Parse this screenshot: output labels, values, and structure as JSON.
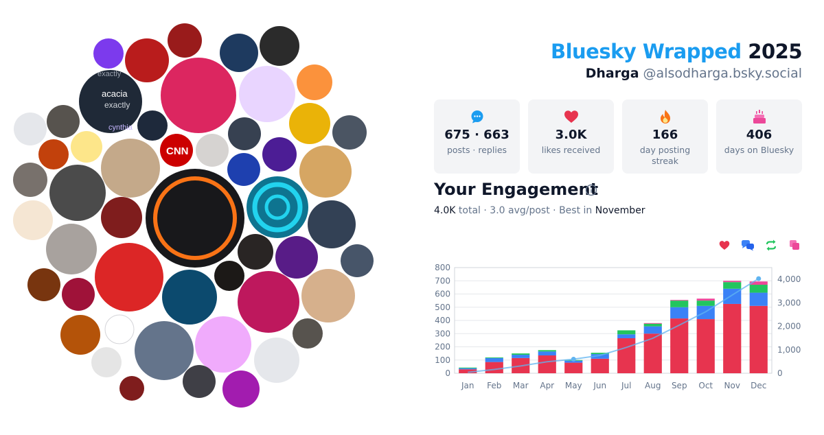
{
  "header": {
    "brand": "Bluesky Wrapped",
    "year": "2025",
    "display_name": "Dharga",
    "handle": "@alsodharga.bsky.social"
  },
  "stats": [
    {
      "icon": "speech-bubble-icon",
      "value": "675 · 663",
      "label": "posts · replies",
      "color": "#1a9cf0"
    },
    {
      "icon": "heart-icon",
      "value": "3.0K",
      "label": "likes received",
      "color": "#e7344f"
    },
    {
      "icon": "flame-icon",
      "value": "166",
      "label": "day posting streak",
      "color": "#f97316"
    },
    {
      "icon": "cake-icon",
      "value": "406",
      "label": "days on Bluesky",
      "color": "#ec4899"
    }
  ],
  "engagement": {
    "title": "Your Engagement",
    "total": "4.0K",
    "total_label": "total",
    "avg": "3.0 avg/post",
    "best_label": "Best in",
    "best_month": "November",
    "sep": " · "
  },
  "avatar_text": {
    "name_a": "acacia",
    "word_a": "exactly",
    "word_b": "exactly",
    "name_c": "cynthia",
    "news_logo": "CNN"
  },
  "colors": {
    "likes": "#e7344f",
    "replies": "#3b82f6",
    "reposts": "#22c55e",
    "quotes": "#ec4899",
    "cumulative": "#60b4f0"
  },
  "chart_data": {
    "type": "bar",
    "categories": [
      "Jan",
      "Feb",
      "Mar",
      "Apr",
      "May",
      "Jun",
      "Jul",
      "Aug",
      "Sep",
      "Oct",
      "Nov",
      "Dec"
    ],
    "series": [
      {
        "values": [
          30,
          85,
          115,
          135,
          80,
          110,
          265,
          300,
          415,
          410,
          525,
          510
        ]
      },
      {
        "values": [
          8,
          30,
          25,
          30,
          15,
          35,
          30,
          55,
          85,
          100,
          115,
          100
        ]
      },
      {
        "values": [
          5,
          5,
          10,
          10,
          5,
          10,
          30,
          20,
          50,
          40,
          50,
          60
        ]
      },
      {
        "values": [
          0,
          0,
          0,
          0,
          0,
          0,
          0,
          5,
          5,
          15,
          10,
          25
        ]
      }
    ],
    "line": {
      "values": [
        40,
        160,
        310,
        490,
        600,
        760,
        1100,
        1490,
        2050,
        2620,
        3330,
        4030
      ]
    },
    "ylim": [
      0,
      800
    ],
    "y_ticks": [
      0,
      100,
      200,
      300,
      400,
      500,
      600,
      700,
      800
    ],
    "y2lim": [
      0,
      4500
    ],
    "y2_ticks": [
      0,
      1000,
      2000,
      3000,
      4000
    ],
    "y2_tick_labels": [
      "0",
      "1,000",
      "2,000",
      "3,000",
      "4,000"
    ],
    "grid": true
  }
}
